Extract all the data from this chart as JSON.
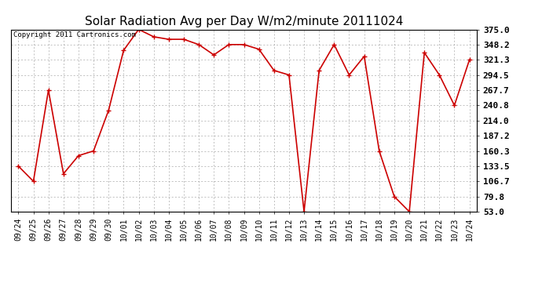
{
  "title": "Solar Radiation Avg per Day W/m2/minute 20111024",
  "copyright": "Copyright 2011 Cartronics.com",
  "labels": [
    "09/24",
    "09/25",
    "09/26",
    "09/27",
    "09/28",
    "09/29",
    "09/30",
    "10/01",
    "10/02",
    "10/03",
    "10/04",
    "10/05",
    "10/06",
    "10/07",
    "10/08",
    "10/09",
    "10/10",
    "10/11",
    "10/12",
    "10/13",
    "10/14",
    "10/15",
    "10/16",
    "10/17",
    "10/18",
    "10/19",
    "10/20",
    "10/21",
    "10/22",
    "10/23",
    "10/24"
  ],
  "values": [
    133.5,
    106.7,
    267.7,
    120.0,
    152.0,
    160.3,
    232.0,
    338.0,
    375.0,
    362.0,
    357.5,
    357.5,
    348.2,
    330.0,
    348.2,
    348.2,
    340.0,
    302.5,
    294.5,
    53.0,
    302.5,
    348.2,
    294.5,
    327.5,
    160.3,
    79.8,
    53.0,
    334.0,
    294.5,
    240.8,
    321.3
  ],
  "line_color": "#cc0000",
  "marker": "+",
  "markersize": 5,
  "markeredgewidth": 1.0,
  "linewidth": 1.2,
  "background_color": "#ffffff",
  "grid_color": "#aaaaaa",
  "ylim": [
    53.0,
    375.0
  ],
  "yticks": [
    53.0,
    79.8,
    106.7,
    133.5,
    160.3,
    187.2,
    214.0,
    240.8,
    267.7,
    294.5,
    321.3,
    348.2,
    375.0
  ],
  "title_fontsize": 11,
  "copyright_fontsize": 6.5,
  "tick_fontsize": 7,
  "ytick_fontsize": 8,
  "ytick_fontweight": "bold"
}
